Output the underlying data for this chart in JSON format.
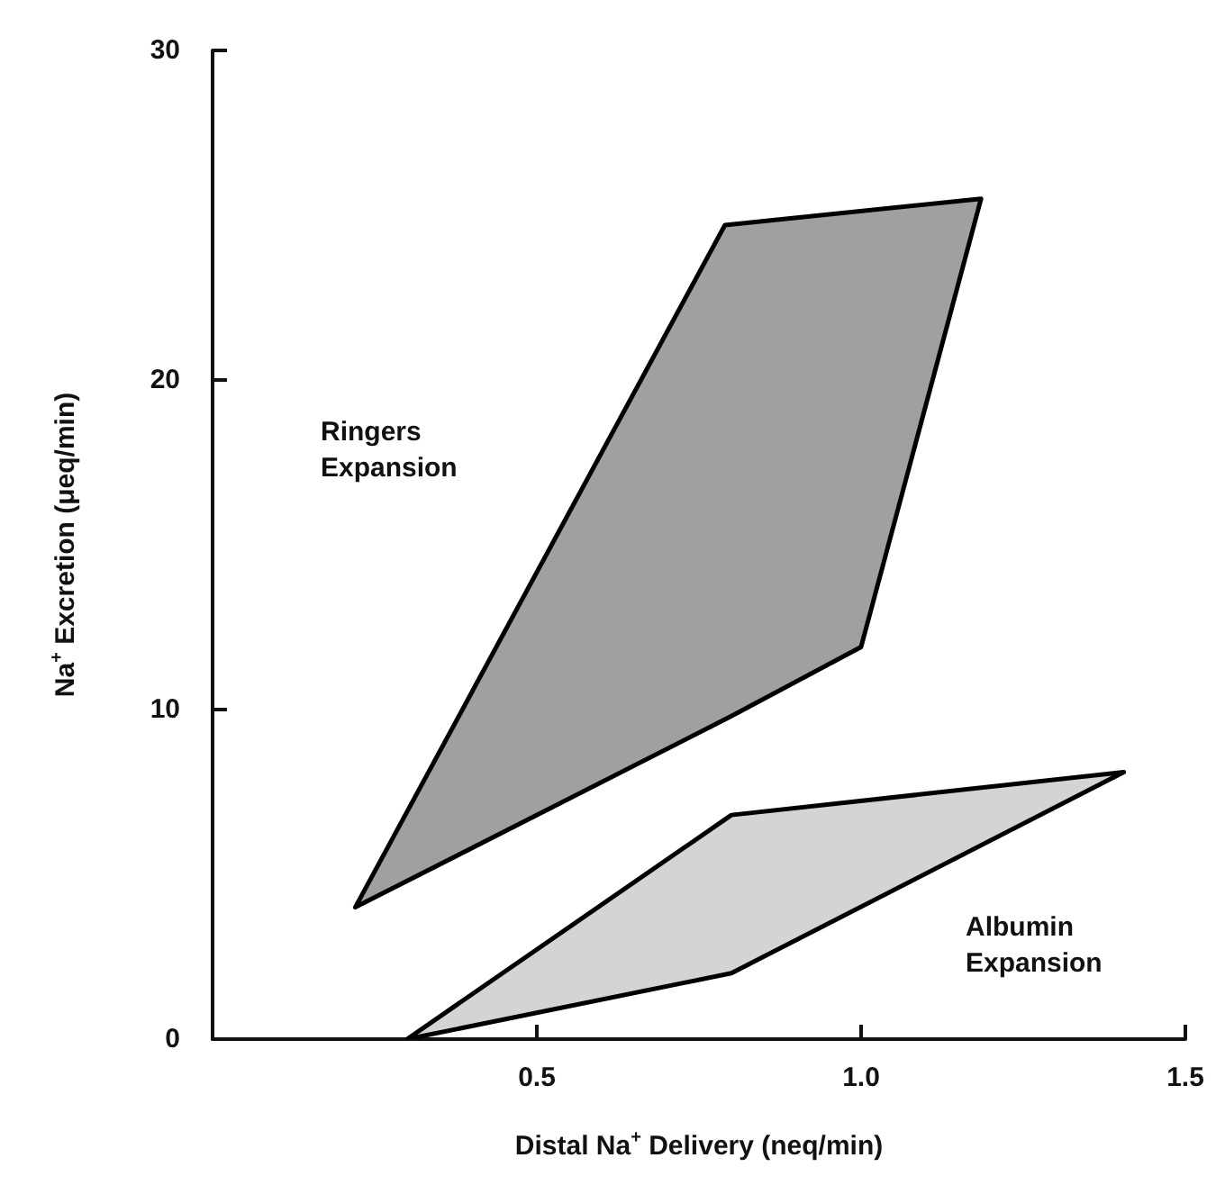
{
  "chart_data": {
    "type": "area",
    "xlabel": "Distal Na$^{+}$ Delivery (neq/min)",
    "ylabel": "Na$^{+}$ Excretion (μeq/min)",
    "xlim": [
      0,
      1.5
    ],
    "xticks": [
      {
        "value": 0.5,
        "label": "0.5"
      },
      {
        "value": 1.0,
        "label": "1.0"
      },
      {
        "value": 1.5,
        "label": "1.5"
      }
    ],
    "ylim": [
      0,
      30
    ],
    "yticks": [
      0,
      10,
      20,
      30
    ],
    "grid": false,
    "series": [
      {
        "color": "#a0a0a0",
        "x": [
          0.22,
          0.79,
          1.185,
          1.0,
          0.8,
          0.22
        ],
        "values": [
          4,
          24.7,
          25.5,
          11.9,
          9.8,
          4
        ]
      },
      {
        "color": "#d4d4d4",
        "x": [
          0.3,
          0.8,
          1.405,
          0.8,
          0.3
        ],
        "values": [
          0,
          6.8,
          8.1,
          2,
          0
        ]
      }
    ],
    "annotations": [
      "Ringers\nExpansion",
      "Albumin\nExpansion"
    ]
  }
}
